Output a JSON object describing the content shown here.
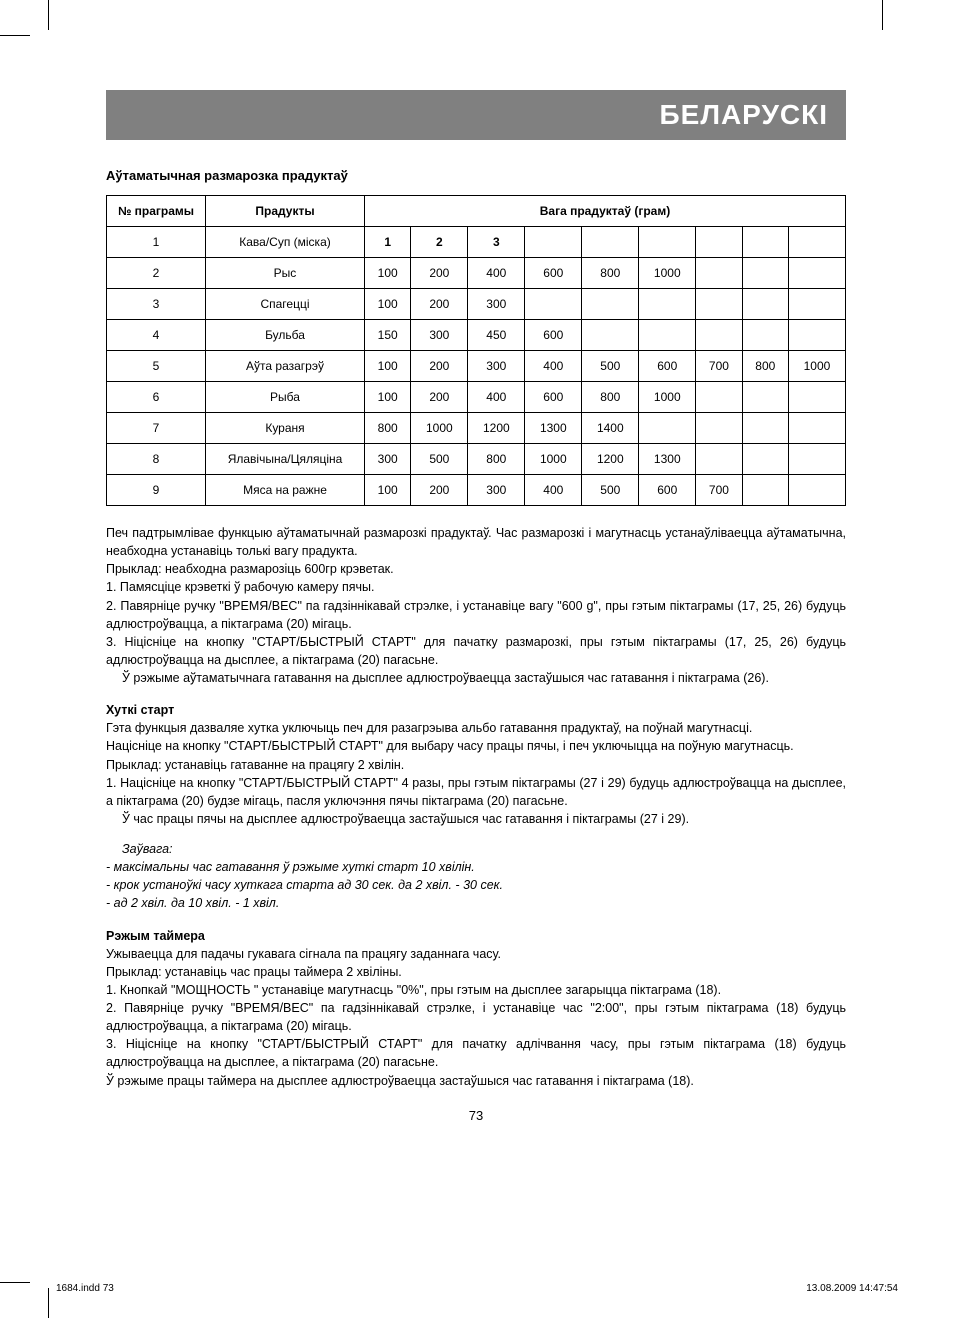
{
  "header": {
    "title": "БЕЛАРУСКI"
  },
  "section1": {
    "title": "Аўтаматычная размарозка прадуктаў"
  },
  "table": {
    "head_program": "№ праграмы",
    "head_products": "Прадукты",
    "head_weight": "Вага прадуктаў (грам)",
    "rows": [
      {
        "n": "1",
        "p": "Кава/Суп (міска)",
        "w": [
          "1",
          "2",
          "3",
          "",
          "",
          "",
          "",
          "",
          ""
        ]
      },
      {
        "n": "2",
        "p": "Рыс",
        "w": [
          "100",
          "200",
          "400",
          "600",
          "800",
          "1000",
          "",
          "",
          ""
        ]
      },
      {
        "n": "3",
        "p": "Спагецці",
        "w": [
          "100",
          "200",
          "300",
          "",
          "",
          "",
          "",
          "",
          ""
        ]
      },
      {
        "n": "4",
        "p": "Бульба",
        "w": [
          "150",
          "300",
          "450",
          "600",
          "",
          "",
          "",
          "",
          ""
        ]
      },
      {
        "n": "5",
        "p": "Аўта разагрэў",
        "w": [
          "100",
          "200",
          "300",
          "400",
          "500",
          "600",
          "700",
          "800",
          "1000"
        ]
      },
      {
        "n": "6",
        "p": "Рыба",
        "w": [
          "100",
          "200",
          "400",
          "600",
          "800",
          "1000",
          "",
          "",
          ""
        ]
      },
      {
        "n": "7",
        "p": "Кураня",
        "w": [
          "800",
          "1000",
          "1200",
          "1300",
          "1400",
          "",
          "",
          "",
          ""
        ]
      },
      {
        "n": "8",
        "p": "Ялавічына/Цяляціна",
        "w": [
          "300",
          "500",
          "800",
          "1000",
          "1200",
          "1300",
          "",
          "",
          ""
        ]
      },
      {
        "n": "9",
        "p": "Мяса на ражне",
        "w": [
          "100",
          "200",
          "300",
          "400",
          "500",
          "600",
          "700",
          "",
          ""
        ]
      }
    ]
  },
  "para1": {
    "l1": "Печ падтрымлівае функцыю аўтаматычнай размарозкі прадуктаў. Час размарозкі і магутнасць устанаўліваецца аўтаматычна, неабходна устанавіць толькі вагу прадукта.",
    "l2": "Прыклад: неабходна размарозіць 600гр крэветак.",
    "l3": "1. Памясціце крэветкі ў рабочую камеру пячы.",
    "l4": "2. Павярніце ручку \"ВРЕМЯ/ВЕС\" па гадзіннікавай стрэлке, і устанавіце вагу \"600 g\", пры гэтым піктаграмы (17, 25, 26) будуць адлюстроўвацца, а піктаграма (20) мігаць.",
    "l5": "3. Ніцісніце на кнопку \"СТАРТ/БЫСТРЫЙ СТАРТ\" для пачатку размарозкі, пры гэтым піктаграмы (17, 25, 26) будуць адлюстроўвацца на дысплее, а піктаграма (20) пагасьне.",
    "l6": "Ў рэжыме аўтаматычнага гатавання на дысплее адлюстроўваецца застаўшыся час гатавання і піктаграма (26)."
  },
  "quick": {
    "title": "Хуткі старт",
    "l1": "Гэта функцыя дазваляе хутка уключыць печ для разагрэыва альбо гатавання прадуктаў, на поўнай магутнасці.",
    "l2": "Націсніце на кнопку \"СТАРТ/БЫСТРЫЙ СТАРТ\" для выбару часу працы пячы, і печ уключыцца на поўную магутнасць.",
    "l3": "Прыклад: устанавіць гатаванне на працягу 2 хвілін.",
    "l4": "1. Націсніце на кнопку \"СТАРТ/БЫСТРЫЙ СТАРТ\" 4 разы, пры гэтым піктаграмы (27 і 29) будуць адлюстроўвацца на дысплее, а піктаграма (20) будзе мігаць, пасля уключэння пячы піктаграма (20) пагасьне.",
    "l5": "Ў час працы пячы на дысплее адлюстроўваецца застаўшыся час гатавання і піктаграмы (27 і 29).",
    "note_title": "Заўвага:",
    "n1": "-   максімальны час гатавання ў рэжыме хуткі старт 10 хвілін.",
    "n2": "-   крок устаноўкі часу хуткага старта ад 30 сек. да 2 хвіл. - 30 сек.",
    "n3": "-   ад 2 хвіл. да 10 хвіл. - 1 хвіл."
  },
  "timer": {
    "title": "Рэжым таймера",
    "l1": "Ужываецца для падачы гукавага сігнала па працягу заданнага часу.",
    "l2": "Прыклад: устанавіць час працы таймера 2 хвіліны.",
    "l3": "1. Кнопкай \"МОЩНОСТЬ \" устанавіце магутнасць \"0%\", пры гэтым на дысплее загарыцца піктаграма (18).",
    "l4": "2. Павярніце ручку \"ВРЕМЯ/ВЕС\" па гадзіннікавай стрэлке, і устанавіце час \"2:00\", пры гэтым піктаграма (18) будуць адлюстроўвацца, а піктаграма (20) мігаць.",
    "l5": "3. Ніцісніце на кнопку \"СТАРТ/БЫСТРЫЙ СТАРТ\" для пачатку адлічвання часу, пры гэтым піктаграма (18) будуць адлюстроўвацца на дысплее, а піктаграма (20) пагасьне.",
    "l6": "Ў рэжыме працы таймера на дысплее адлюстроўваецца застаўшыся час гатавання і піктаграма (18)."
  },
  "page_number": "73",
  "footer": {
    "left": "1684.indd   73",
    "right": "13.08.2009   14:47:54"
  }
}
